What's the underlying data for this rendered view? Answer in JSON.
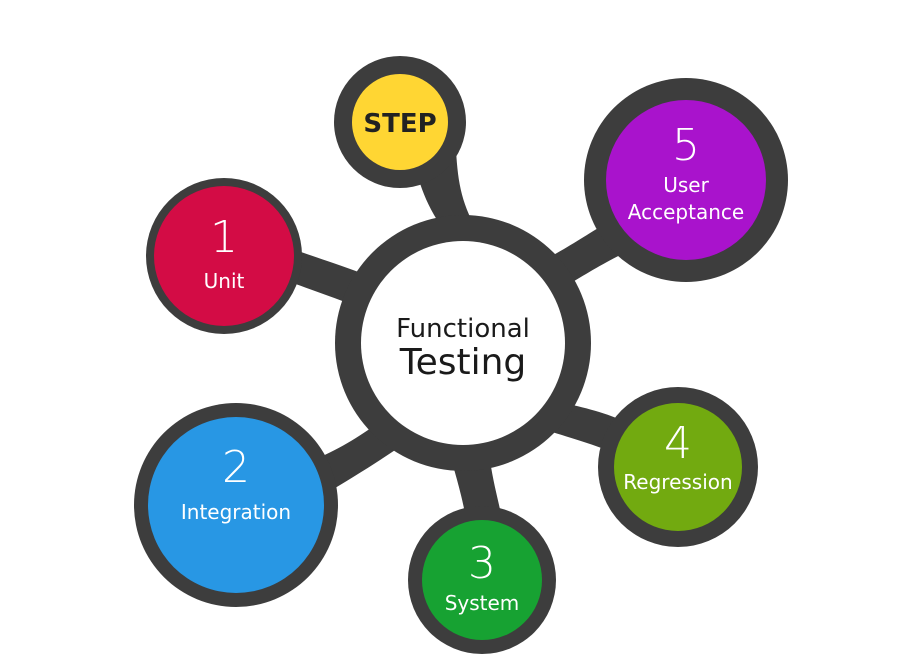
{
  "center": {
    "line1": "Functional",
    "line2": "Testing"
  },
  "step": {
    "label": "STEP",
    "color": "#FFD633"
  },
  "steps": [
    {
      "number": "1",
      "label": "Unit",
      "label2": "",
      "color": "#D30C45"
    },
    {
      "number": "2",
      "label": "Integration",
      "label2": "",
      "color": "#2897E4"
    },
    {
      "number": "3",
      "label": "System",
      "label2": "",
      "color": "#17A232"
    },
    {
      "number": "4",
      "label": "Regression",
      "label2": "",
      "color": "#72AA10"
    },
    {
      "number": "5",
      "label": "User",
      "label2": "Acceptance",
      "color": "#A913CC"
    }
  ],
  "colors": {
    "ring": "#3D3D3D",
    "center_fill": "#FFFFFF",
    "text_on_color": "#FFFFFF",
    "center_text": "#1A1A1A",
    "step_text": "#222222"
  }
}
